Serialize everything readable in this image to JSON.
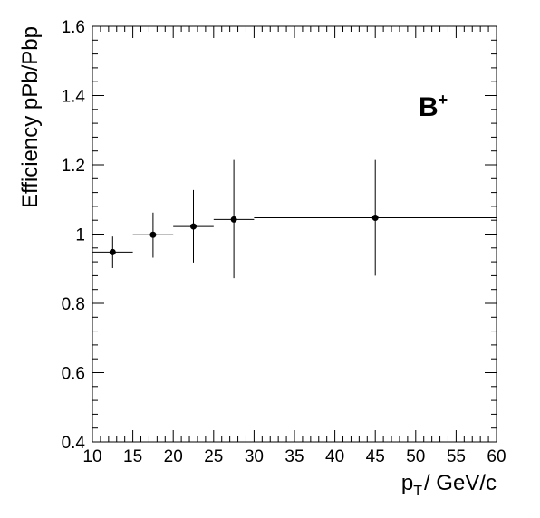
{
  "chart_data": {
    "type": "scatter",
    "title": "",
    "xlabel": {
      "main": "p",
      "sub": "T",
      "rest": "/ GeV/c"
    },
    "ylabel": "Efficiency pPb/Pbp",
    "xlim": [
      10,
      60
    ],
    "ylim": [
      0.4,
      1.6
    ],
    "x_ticks": [
      10,
      15,
      20,
      25,
      30,
      35,
      40,
      45,
      50,
      55,
      60
    ],
    "x_tick_labels": [
      "10",
      "15",
      "20",
      "25",
      "30",
      "35",
      "40",
      "45",
      "50",
      "55",
      "60"
    ],
    "y_ticks": [
      0.4,
      0.6,
      0.8,
      1.0,
      1.2,
      1.4,
      1.6
    ],
    "y_tick_labels": [
      "0.4",
      "0.6",
      "0.8",
      "1",
      "1.2",
      "1.4",
      "1.6"
    ],
    "grid": false,
    "annotation": {
      "main": "B",
      "sup": "+"
    },
    "points": [
      {
        "x": 12.5,
        "xlow": 10,
        "xhigh": 15,
        "y": 0.948,
        "ylow": 0.902,
        "yhigh": 0.993
      },
      {
        "x": 17.5,
        "xlow": 15,
        "xhigh": 20,
        "y": 0.998,
        "ylow": 0.932,
        "yhigh": 1.062
      },
      {
        "x": 22.5,
        "xlow": 20,
        "xhigh": 25,
        "y": 1.022,
        "ylow": 0.918,
        "yhigh": 1.127
      },
      {
        "x": 27.5,
        "xlow": 25,
        "xhigh": 30,
        "y": 1.042,
        "ylow": 0.873,
        "yhigh": 1.214
      },
      {
        "x": 45,
        "xlow": 30,
        "xhigh": 60,
        "y": 1.047,
        "ylow": 0.88,
        "yhigh": 1.214
      }
    ]
  }
}
